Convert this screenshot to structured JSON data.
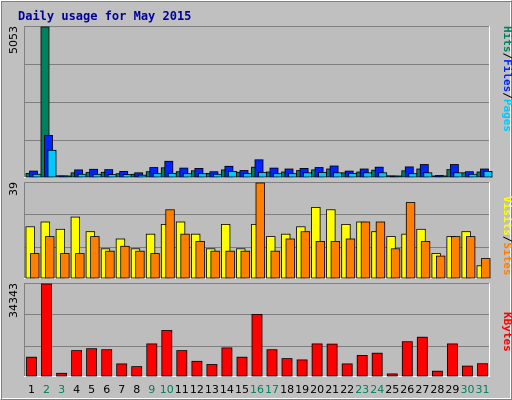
{
  "title": "Daily usage for May 2015",
  "colors": {
    "background": "#c0c0c0",
    "plot": "#bdbdbd",
    "hits": "#00805c",
    "files": "#0024ff",
    "pages": "#00c8ff",
    "visits": "#ffff00",
    "sites": "#ff8000",
    "kbytes": "#ff0000",
    "weekday_label": "#000000",
    "weekend_label": "#00805c"
  },
  "right_labels": {
    "top": [
      {
        "text": "Hits",
        "color": "#00805c"
      },
      {
        "text": "/",
        "color": "#000000"
      },
      {
        "text": "Files",
        "color": "#0024ff"
      },
      {
        "text": "/",
        "color": "#000000"
      },
      {
        "text": "Pages",
        "color": "#00c8ff"
      }
    ],
    "middle": [
      {
        "text": "Visits",
        "color": "#ffff00"
      },
      {
        "text": "/",
        "color": "#000000"
      },
      {
        "text": "Sites",
        "color": "#ff8000"
      }
    ],
    "bottom": [
      {
        "text": "KBytes",
        "color": "#ff0000"
      }
    ]
  },
  "chart_data": [
    {
      "type": "bar",
      "title": "Daily usage for May 2015",
      "ylabel": "5053",
      "ylim": [
        0,
        5053
      ],
      "categories": [
        "1",
        "2",
        "3",
        "4",
        "5",
        "6",
        "7",
        "8",
        "9",
        "10",
        "11",
        "12",
        "13",
        "14",
        "15",
        "16",
        "17",
        "18",
        "19",
        "20",
        "21",
        "22",
        "23",
        "24",
        "25",
        "26",
        "27",
        "28",
        "29",
        "30",
        "31"
      ],
      "weekend": [
        "2",
        "3",
        "9",
        "10",
        "16",
        "17",
        "23",
        "24",
        "30",
        "31"
      ],
      "series": [
        {
          "name": "Hits",
          "values": [
            120,
            5053,
            40,
            140,
            150,
            160,
            110,
            90,
            180,
            310,
            180,
            210,
            120,
            240,
            160,
            330,
            170,
            170,
            220,
            240,
            270,
            140,
            170,
            230,
            40,
            210,
            270,
            30,
            250,
            140,
            170
          ]
        },
        {
          "name": "Files",
          "values": [
            200,
            1400,
            40,
            240,
            260,
            250,
            190,
            140,
            320,
            530,
            300,
            290,
            180,
            360,
            220,
            580,
            300,
            270,
            290,
            320,
            370,
            200,
            270,
            330,
            30,
            340,
            420,
            50,
            420,
            180,
            270
          ]
        },
        {
          "name": "Pages",
          "values": [
            90,
            900,
            20,
            90,
            90,
            80,
            80,
            60,
            110,
            120,
            110,
            110,
            90,
            190,
            110,
            150,
            110,
            110,
            140,
            150,
            140,
            120,
            140,
            140,
            20,
            110,
            140,
            20,
            140,
            90,
            190
          ]
        }
      ]
    },
    {
      "type": "bar",
      "ylabel": "39",
      "ylim": [
        0,
        39
      ],
      "categories": [
        "1",
        "2",
        "3",
        "4",
        "5",
        "6",
        "7",
        "8",
        "9",
        "10",
        "11",
        "12",
        "13",
        "14",
        "15",
        "16",
        "17",
        "18",
        "19",
        "20",
        "21",
        "22",
        "23",
        "24",
        "25",
        "26",
        "27",
        "28",
        "29",
        "30",
        "31"
      ],
      "series": [
        {
          "name": "Visits",
          "values": [
            21,
            23,
            20,
            25,
            19,
            12,
            16,
            12,
            18,
            22,
            23,
            18,
            12,
            22,
            12,
            22,
            17,
            18,
            21,
            29,
            28,
            22,
            23,
            19,
            17,
            18,
            20,
            10,
            17,
            19,
            5
          ]
        },
        {
          "name": "Sites",
          "values": [
            10,
            17,
            10,
            10,
            17,
            11,
            13,
            11,
            10,
            28,
            18,
            15,
            11,
            11,
            11,
            39,
            11,
            16,
            19,
            15,
            15,
            16,
            23,
            23,
            12,
            31,
            15,
            9,
            17,
            17,
            8
          ]
        }
      ]
    },
    {
      "type": "bar",
      "ylabel": "34343",
      "ylim": [
        0,
        34343
      ],
      "categories": [
        "1",
        "2",
        "3",
        "4",
        "5",
        "6",
        "7",
        "8",
        "9",
        "10",
        "11",
        "12",
        "13",
        "14",
        "15",
        "16",
        "17",
        "18",
        "19",
        "20",
        "21",
        "22",
        "23",
        "24",
        "25",
        "26",
        "27",
        "28",
        "29",
        "30",
        "31"
      ],
      "series": [
        {
          "name": "KBytes",
          "values": [
            7000,
            34343,
            1000,
            9500,
            10200,
            9800,
            4500,
            3500,
            12000,
            17000,
            9500,
            5500,
            4300,
            10500,
            7000,
            23000,
            9800,
            6500,
            6000,
            12000,
            11900,
            4500,
            7700,
            8500,
            800,
            12800,
            14500,
            1800,
            12000,
            3700,
            4600
          ]
        }
      ]
    }
  ]
}
